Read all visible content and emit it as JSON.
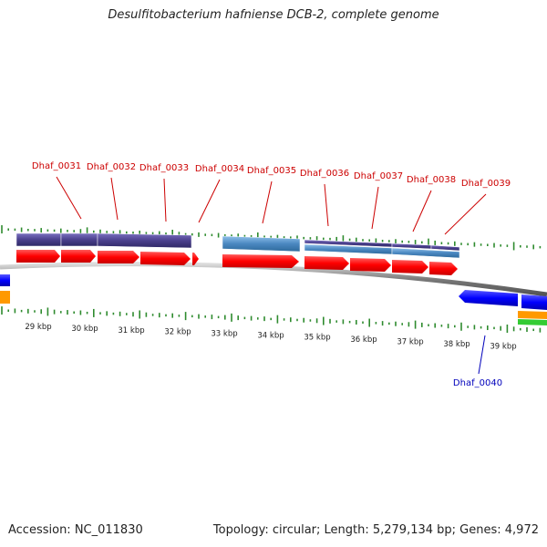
{
  "header": {
    "title": "Desulfitobacterium hafniense DCB-2, complete genome"
  },
  "footer": {
    "accession": "Accession: NC_011830",
    "topology": "Topology: circular; Length: 5,279,134 bp; Genes: 4,972"
  },
  "scale": {
    "ticks": [
      "29 kbp",
      "30 kbp",
      "31 kbp",
      "32 kbp",
      "33 kbp",
      "34 kbp",
      "35 kbp",
      "36 kbp",
      "37 kbp",
      "38 kbp",
      "39 kbp"
    ]
  },
  "genes_top": [
    "Dhaf_0031",
    "Dhaf_0032",
    "Dhaf_0033",
    "Dhaf_0034",
    "Dhaf_0035",
    "Dhaf_0036",
    "Dhaf_0037",
    "Dhaf_0038",
    "Dhaf_0039"
  ],
  "genes_bottom": [
    "Dhaf_0040"
  ],
  "colors": {
    "forward_cds": "#ff0000",
    "reverse_cds": "#0000ff",
    "feature_dark": "#4a3f8c",
    "feature_light": "#4a87c0",
    "backbone": "#888888",
    "tick": "#2e8b2e",
    "label_top": "#cc0000",
    "label_bottom": "#0000bb",
    "extra_orange": "#ff9900",
    "extra_green": "#33cc33"
  }
}
